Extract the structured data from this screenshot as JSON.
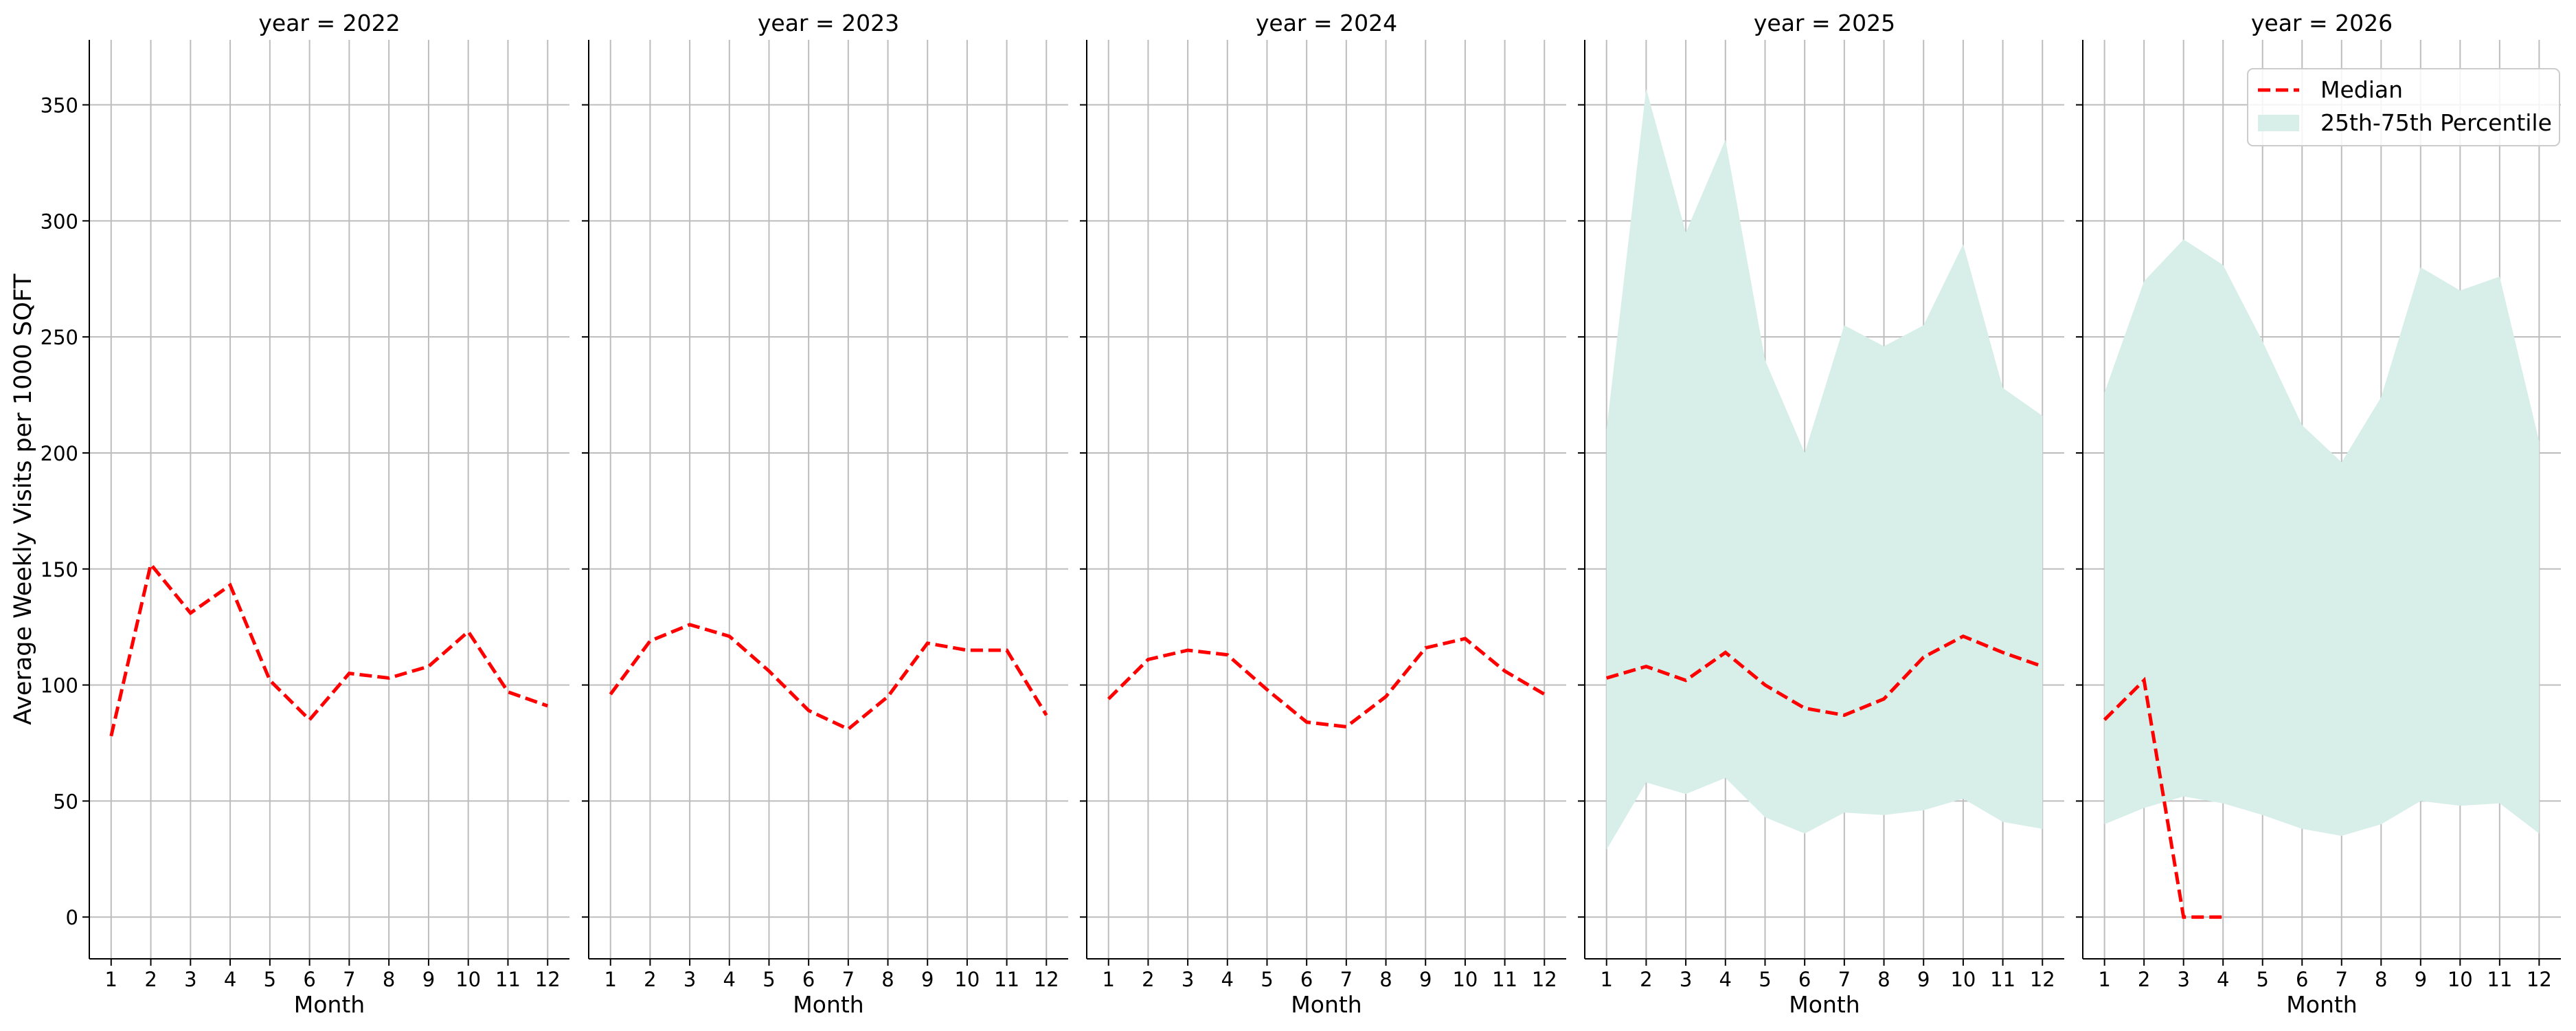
{
  "chart_data": {
    "type": "line",
    "ylabel": "Average Weekly Visits per 1000 SQFT",
    "xlabel": "Month",
    "ylim": [
      -18,
      378
    ],
    "xlim": [
      0.45,
      12.55
    ],
    "yticks": [
      0,
      50,
      100,
      150,
      200,
      250,
      300,
      350
    ],
    "xticks": [
      1,
      2,
      3,
      4,
      5,
      6,
      7,
      8,
      9,
      10,
      11,
      12
    ],
    "grid": true,
    "legend": {
      "position": "top-right",
      "median_label": "Median",
      "band_label": "25th-75th Percentile"
    },
    "colors": {
      "median": "#ff0000",
      "band": "#d7efe8",
      "grid": "#bdbdbd"
    },
    "panels": [
      {
        "title": "year = 2022",
        "median": {
          "x": [
            1,
            2,
            3,
            4,
            5,
            6,
            7,
            8,
            9,
            10,
            11,
            12
          ],
          "y": [
            78,
            152,
            131,
            143,
            102,
            85,
            105,
            103,
            108,
            123,
            97,
            91
          ]
        }
      },
      {
        "title": "year = 2023",
        "median": {
          "x": [
            1,
            2,
            3,
            4,
            5,
            6,
            7,
            8,
            9,
            10,
            11,
            12
          ],
          "y": [
            96,
            119,
            126,
            121,
            106,
            89,
            81,
            95,
            118,
            115,
            115,
            87
          ]
        }
      },
      {
        "title": "year = 2024",
        "median": {
          "x": [
            1,
            2,
            3,
            4,
            5,
            6,
            7,
            8,
            9,
            10,
            11,
            12
          ],
          "y": [
            94,
            111,
            115,
            113,
            98,
            84,
            82,
            95,
            116,
            120,
            106,
            96
          ]
        }
      },
      {
        "title": "year = 2025",
        "median": {
          "x": [
            1,
            2,
            3,
            4,
            5,
            6,
            7,
            8,
            9,
            10,
            11,
            12
          ],
          "y": [
            103,
            108,
            102,
            114,
            100,
            90,
            87,
            94,
            112,
            121,
            114,
            108
          ]
        },
        "band": {
          "x": [
            1,
            2,
            3,
            4,
            5,
            6,
            7,
            8,
            9,
            10,
            11,
            12
          ],
          "low": [
            29,
            58,
            53,
            60,
            43,
            36,
            45,
            44,
            46,
            51,
            41,
            38
          ],
          "high": [
            210,
            357,
            295,
            335,
            240,
            200,
            255,
            246,
            255,
            290,
            228,
            216
          ]
        }
      },
      {
        "title": "year = 2026",
        "median": {
          "x": [
            1,
            2,
            3,
            4
          ],
          "y": [
            85,
            102,
            0,
            0
          ]
        },
        "band": {
          "x": [
            1,
            2,
            3,
            4,
            5,
            6,
            7,
            8,
            9,
            10,
            11,
            12
          ],
          "low": [
            40,
            47,
            52,
            49,
            44,
            38,
            35,
            40,
            50,
            48,
            49,
            36
          ],
          "high": [
            226,
            274,
            292,
            281,
            248,
            212,
            196,
            224,
            280,
            270,
            276,
            205
          ]
        }
      }
    ]
  }
}
